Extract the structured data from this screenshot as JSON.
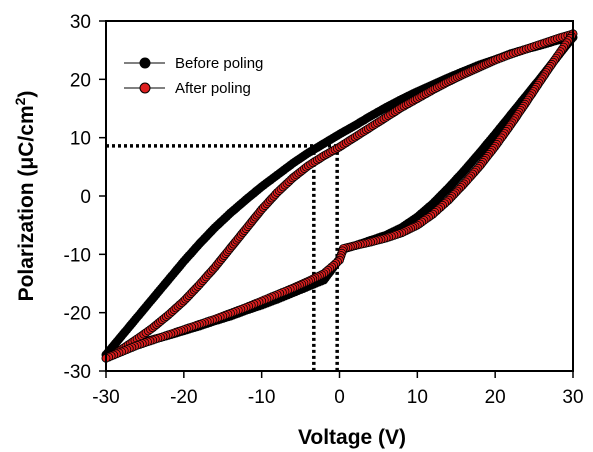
{
  "chart_data": {
    "type": "scatter",
    "xlabel": "Voltage (V)",
    "ylabel_main": "Polarization (μC/cm",
    "ylabel_sup": "2",
    "ylabel_close": ")",
    "xlim": [
      -30,
      30
    ],
    "ylim": [
      -30,
      30
    ],
    "xticks": [
      -30,
      -20,
      -10,
      0,
      10,
      20,
      30
    ],
    "yticks": [
      -30,
      -20,
      -10,
      0,
      10,
      20,
      30
    ],
    "xtick_labels": [
      "-30",
      "-20",
      "-10",
      "0",
      "10",
      "20",
      "30"
    ],
    "ytick_labels": [
      "-30",
      "-20",
      "-10",
      "0",
      "10",
      "20",
      "30"
    ],
    "grid": false,
    "legend_position": "top-left",
    "series": [
      {
        "name": "Before poling",
        "color": "#000000",
        "upper_branch": [
          [
            -30,
            -27.2
          ],
          [
            -29,
            -25.6
          ],
          [
            -28,
            -24
          ],
          [
            -26,
            -20.8
          ],
          [
            -24,
            -17.6
          ],
          [
            -22,
            -14.4
          ],
          [
            -20,
            -11.2
          ],
          [
            -18,
            -8.2
          ],
          [
            -16,
            -5.4
          ],
          [
            -14,
            -2.9
          ],
          [
            -12,
            -0.6
          ],
          [
            -10,
            1.6
          ],
          [
            -8,
            3.6
          ],
          [
            -6,
            5.6
          ],
          [
            -4,
            7.4
          ],
          [
            -2,
            9
          ],
          [
            0,
            10.6
          ],
          [
            2,
            12.1
          ],
          [
            4,
            13.7
          ],
          [
            6,
            15.2
          ],
          [
            8,
            16.6
          ],
          [
            10,
            17.9
          ],
          [
            12,
            19.1
          ],
          [
            14,
            20.3
          ],
          [
            16,
            21.4
          ],
          [
            18,
            22.5
          ],
          [
            20,
            23.4
          ],
          [
            22,
            24.4
          ],
          [
            24,
            25.2
          ],
          [
            26,
            25.9
          ],
          [
            28,
            26.7
          ],
          [
            30,
            27.2
          ]
        ],
        "lower_branch": [
          [
            30,
            27.2
          ],
          [
            29,
            25.6
          ],
          [
            28,
            23.9
          ],
          [
            26,
            20.5
          ],
          [
            24,
            17.2
          ],
          [
            22,
            13.9
          ],
          [
            20,
            10.6
          ],
          [
            18,
            7.4
          ],
          [
            16,
            4.3
          ],
          [
            14,
            1.4
          ],
          [
            12,
            -1.3
          ],
          [
            10,
            -3.6
          ],
          [
            8,
            -5.4
          ],
          [
            6,
            -6.7
          ],
          [
            4,
            -7.6
          ],
          [
            2,
            -8.5
          ],
          [
            0.5,
            -9.1
          ],
          [
            0,
            -10.8
          ],
          [
            -2,
            -14.4
          ],
          [
            -4,
            -15.5
          ],
          [
            -6,
            -16.6
          ],
          [
            -8,
            -17.7
          ],
          [
            -10,
            -18.7
          ],
          [
            -12,
            -19.6
          ],
          [
            -14,
            -20.6
          ],
          [
            -16,
            -21.4
          ],
          [
            -18,
            -22.3
          ],
          [
            -20,
            -23.1
          ],
          [
            -22,
            -23.9
          ],
          [
            -24,
            -24.6
          ],
          [
            -26,
            -25.4
          ],
          [
            -28,
            -26.3
          ],
          [
            -30,
            -27.2
          ]
        ]
      },
      {
        "name": "After poling",
        "color": "#dd1f1f",
        "upper_branch": [
          [
            -30,
            -27.8
          ],
          [
            -29,
            -27.2
          ],
          [
            -28,
            -26.3
          ],
          [
            -26,
            -24.5
          ],
          [
            -24,
            -22.6
          ],
          [
            -22,
            -20.4
          ],
          [
            -20,
            -18
          ],
          [
            -18,
            -15.2
          ],
          [
            -16,
            -12.2
          ],
          [
            -14,
            -8.9
          ],
          [
            -12,
            -5.6
          ],
          [
            -10,
            -2.3
          ],
          [
            -8,
            0.6
          ],
          [
            -6,
            3.1
          ],
          [
            -4,
            5.2
          ],
          [
            -2,
            6.9
          ],
          [
            0,
            8.4
          ],
          [
            2,
            10.1
          ],
          [
            4,
            11.8
          ],
          [
            6,
            13.5
          ],
          [
            8,
            15.2
          ],
          [
            10,
            16.7
          ],
          [
            12,
            18.2
          ],
          [
            14,
            19.6
          ],
          [
            16,
            20.9
          ],
          [
            18,
            22.1
          ],
          [
            20,
            23.3
          ],
          [
            22,
            24.3
          ],
          [
            24,
            25.2
          ],
          [
            26,
            26.1
          ],
          [
            28,
            27
          ],
          [
            30,
            27.8
          ]
        ],
        "lower_branch": [
          [
            30,
            27.8
          ],
          [
            29,
            25.9
          ],
          [
            28,
            24
          ],
          [
            26,
            20.1
          ],
          [
            24,
            16.1
          ],
          [
            22,
            12.2
          ],
          [
            20,
            8.5
          ],
          [
            18,
            5.1
          ],
          [
            16,
            2.1
          ],
          [
            14,
            -0.7
          ],
          [
            12,
            -3.1
          ],
          [
            10,
            -5
          ],
          [
            8,
            -6.3
          ],
          [
            6,
            -7.2
          ],
          [
            4,
            -7.9
          ],
          [
            2,
            -8.5
          ],
          [
            0.5,
            -9
          ],
          [
            0,
            -11
          ],
          [
            -2,
            -13.3
          ],
          [
            -4,
            -14.6
          ],
          [
            -6,
            -15.8
          ],
          [
            -8,
            -16.9
          ],
          [
            -10,
            -18
          ],
          [
            -12,
            -19.1
          ],
          [
            -14,
            -20.1
          ],
          [
            -16,
            -21.1
          ],
          [
            -18,
            -22
          ],
          [
            -20,
            -22.9
          ],
          [
            -22,
            -23.8
          ],
          [
            -24,
            -24.7
          ],
          [
            -26,
            -25.6
          ],
          [
            -28,
            -26.7
          ],
          [
            -30,
            -27.8
          ]
        ]
      }
    ],
    "annotations": {
      "coercive_markers": [
        {
          "label": "Before poling",
          "ec": -0.3,
          "pr": 8.6
        },
        {
          "label": "After poling",
          "ec": -3.3,
          "pr": 8.6
        }
      ]
    }
  }
}
